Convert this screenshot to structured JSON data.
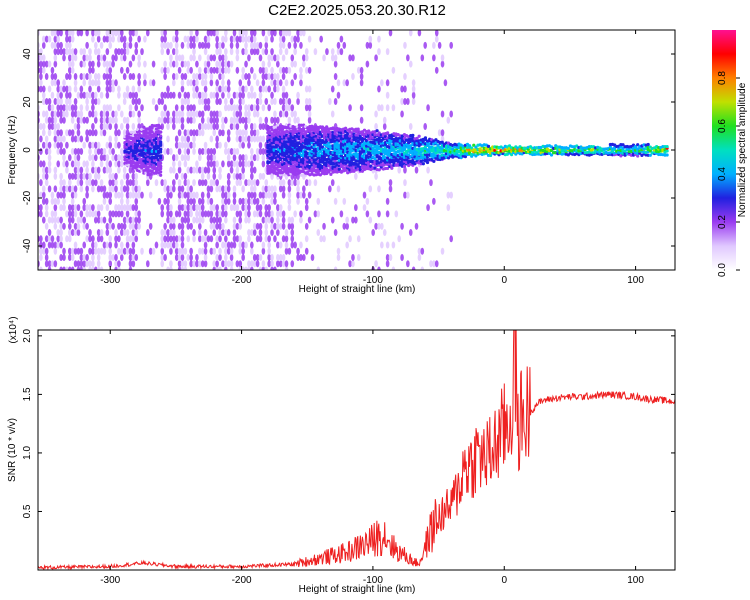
{
  "title": "C2E2.2025.053.20.30.R12",
  "chart_data": [
    {
      "type": "heatmap",
      "xlabel": "Height of straight line (km)",
      "ylabel": "Frequency (Hz)",
      "xlim": [
        -355,
        130
      ],
      "ylim": [
        -50,
        50
      ],
      "x_ticks": [
        -300,
        -200,
        -100,
        0,
        100
      ],
      "y_ticks": [
        -40,
        -20,
        0,
        20,
        40
      ],
      "colorbar": {
        "label": "Normalized spectral amplitude",
        "range": [
          0,
          1
        ],
        "ticks": [
          "0.0",
          "0.2",
          "0.4",
          "0.6",
          "0.8"
        ],
        "colors": [
          "#ffffff",
          "#e0c8ff",
          "#9a3cf0",
          "#2020e0",
          "#00b0ff",
          "#00e0c0",
          "#20e020",
          "#c0e000",
          "#ff8000",
          "#ff0000",
          "#ff1090"
        ]
      },
      "signal_band": {
        "center_freq_hz": 0,
        "points": [
          {
            "height_km": -290,
            "halfwidth_hz": 6,
            "amplitude": 0.3
          },
          {
            "height_km": -270,
            "halfwidth_hz": 10,
            "amplitude": 0.35
          },
          {
            "height_km": -175,
            "halfwidth_hz": 10,
            "amplitude": 0.35
          },
          {
            "height_km": -140,
            "halfwidth_hz": 10,
            "amplitude": 0.4
          },
          {
            "height_km": -100,
            "halfwidth_hz": 8,
            "amplitude": 0.45
          },
          {
            "height_km": -70,
            "halfwidth_hz": 6,
            "amplitude": 0.5
          },
          {
            "height_km": -40,
            "halfwidth_hz": 3,
            "amplitude": 0.6
          },
          {
            "height_km": -20,
            "halfwidth_hz": 2,
            "amplitude": 0.85
          },
          {
            "height_km": 0,
            "halfwidth_hz": 1.5,
            "amplitude": 0.9
          },
          {
            "height_km": 50,
            "halfwidth_hz": 1.5,
            "amplitude": 0.7
          },
          {
            "height_km": 100,
            "halfwidth_hz": 2,
            "amplitude": 0.55
          },
          {
            "height_km": 125,
            "halfwidth_hz": 1.5,
            "amplitude": 0.9
          }
        ]
      }
    },
    {
      "type": "line",
      "xlabel": "Height of straight line (km)",
      "ylabel": "SNR (10 * v/v)",
      "y_multiplier": "(x10⁴)",
      "xlim": [
        -355,
        130
      ],
      "ylim": [
        0,
        2.05
      ],
      "x_ticks": [
        -300,
        -200,
        -100,
        0,
        100
      ],
      "y_ticks": [
        0.5,
        1.0,
        1.5,
        2.0
      ],
      "color": "#ee2020",
      "x": [
        -355,
        -300,
        -275,
        -250,
        -200,
        -160,
        -140,
        -120,
        -110,
        -100,
        -95,
        -90,
        -85,
        -80,
        -75,
        -70,
        -65,
        -60,
        -55,
        -50,
        -45,
        -40,
        -35,
        -30,
        -25,
        -20,
        -15,
        -10,
        -5,
        0,
        5,
        8,
        10,
        12,
        15,
        20,
        25,
        30,
        40,
        50,
        60,
        70,
        80,
        90,
        100,
        110,
        120,
        130
      ],
      "y": [
        0.02,
        0.03,
        0.06,
        0.03,
        0.03,
        0.05,
        0.1,
        0.15,
        0.2,
        0.25,
        0.3,
        0.3,
        0.2,
        0.15,
        0.12,
        0.08,
        0.05,
        0.2,
        0.35,
        0.45,
        0.5,
        0.55,
        0.7,
        0.9,
        0.9,
        1.0,
        0.95,
        1.0,
        1.1,
        1.2,
        1.3,
        1.9,
        1.2,
        1.3,
        1.3,
        1.35,
        1.42,
        1.45,
        1.47,
        1.48,
        1.48,
        1.49,
        1.5,
        1.49,
        1.48,
        1.46,
        1.45,
        1.44
      ]
    }
  ]
}
